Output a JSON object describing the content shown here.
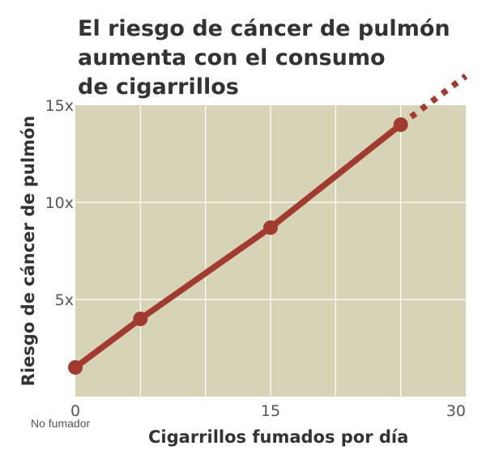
{
  "chart_data": {
    "type": "line",
    "title_lines": [
      "El riesgo de cáncer de pulmón",
      "aumenta con el consumo",
      "de cigarrillos"
    ],
    "xlabel": "Cigarrillos fumados por día",
    "ylabel": "Riesgo de cáncer de pulmón",
    "x_note": "No fumador",
    "xlim": [
      0,
      30
    ],
    "ylim": [
      0,
      15
    ],
    "x_ticks": [
      {
        "value": 0,
        "label": "0"
      },
      {
        "value": 15,
        "label": "15"
      },
      {
        "value": 30,
        "label": "30"
      }
    ],
    "y_ticks": [
      {
        "value": 5,
        "label": "5x"
      },
      {
        "value": 10,
        "label": "10x"
      },
      {
        "value": 15,
        "label": "15x"
      }
    ],
    "grid": true,
    "series": [
      {
        "points": [
          {
            "x": 0,
            "y": 1.5
          },
          {
            "x": 5,
            "y": 4
          },
          {
            "x": 15,
            "y": 8.7
          },
          {
            "x": 25,
            "y": 14
          }
        ],
        "extrapolated_to": {
          "x": 30,
          "y": 16.5
        }
      }
    ],
    "colors": {
      "plot_background": "#d7d3b6",
      "grid": "#ffffff",
      "line": "#a23b2f",
      "text": "#333333"
    }
  }
}
